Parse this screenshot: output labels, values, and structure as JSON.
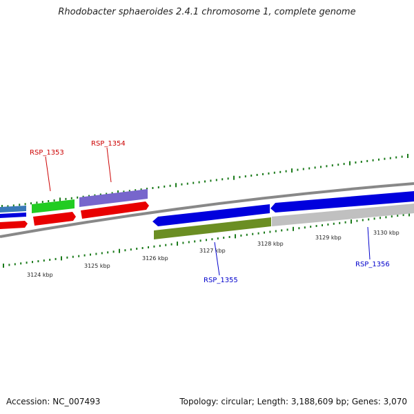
{
  "title": "Rhodobacter sphaeroides 2.4.1 chromosome 1, complete genome",
  "footer": {
    "accession": "Accession: NC_007493",
    "summary": "Topology: circular; Length: 3,188,609 bp; Genes: 3,070"
  },
  "kbp_ticks": [
    {
      "text": "3124 kbp",
      "name": "kbp-label-3124"
    },
    {
      "text": "3125 kbp",
      "name": "kbp-label-3125"
    },
    {
      "text": "3126 kbp",
      "name": "kbp-label-3126"
    },
    {
      "text": "3127 kbp",
      "name": "kbp-label-3127"
    },
    {
      "text": "3128 kbp",
      "name": "kbp-label-3128"
    },
    {
      "text": "3129 kbp",
      "name": "kbp-label-3129"
    },
    {
      "text": "3130 kbp",
      "name": "kbp-label-3130"
    }
  ],
  "gene_labels": [
    {
      "text": "RSP_1353",
      "color": "#cc0000"
    },
    {
      "text": "RSP_1354",
      "color": "#cc0000"
    },
    {
      "text": "RSP_1355",
      "color": "#0000cc"
    },
    {
      "text": "RSP_1356",
      "color": "#0000cc"
    }
  ],
  "colors": {
    "forward_cds": "#e80000",
    "reverse_cds": "#0000dd",
    "green_feature": "#22cc22",
    "purple_feature": "#7766cc",
    "olive_feature": "#6b8e23",
    "gray_feature": "#c0c0c0",
    "backbone": "#888888",
    "gc_ticks": "#1a7a1a"
  }
}
